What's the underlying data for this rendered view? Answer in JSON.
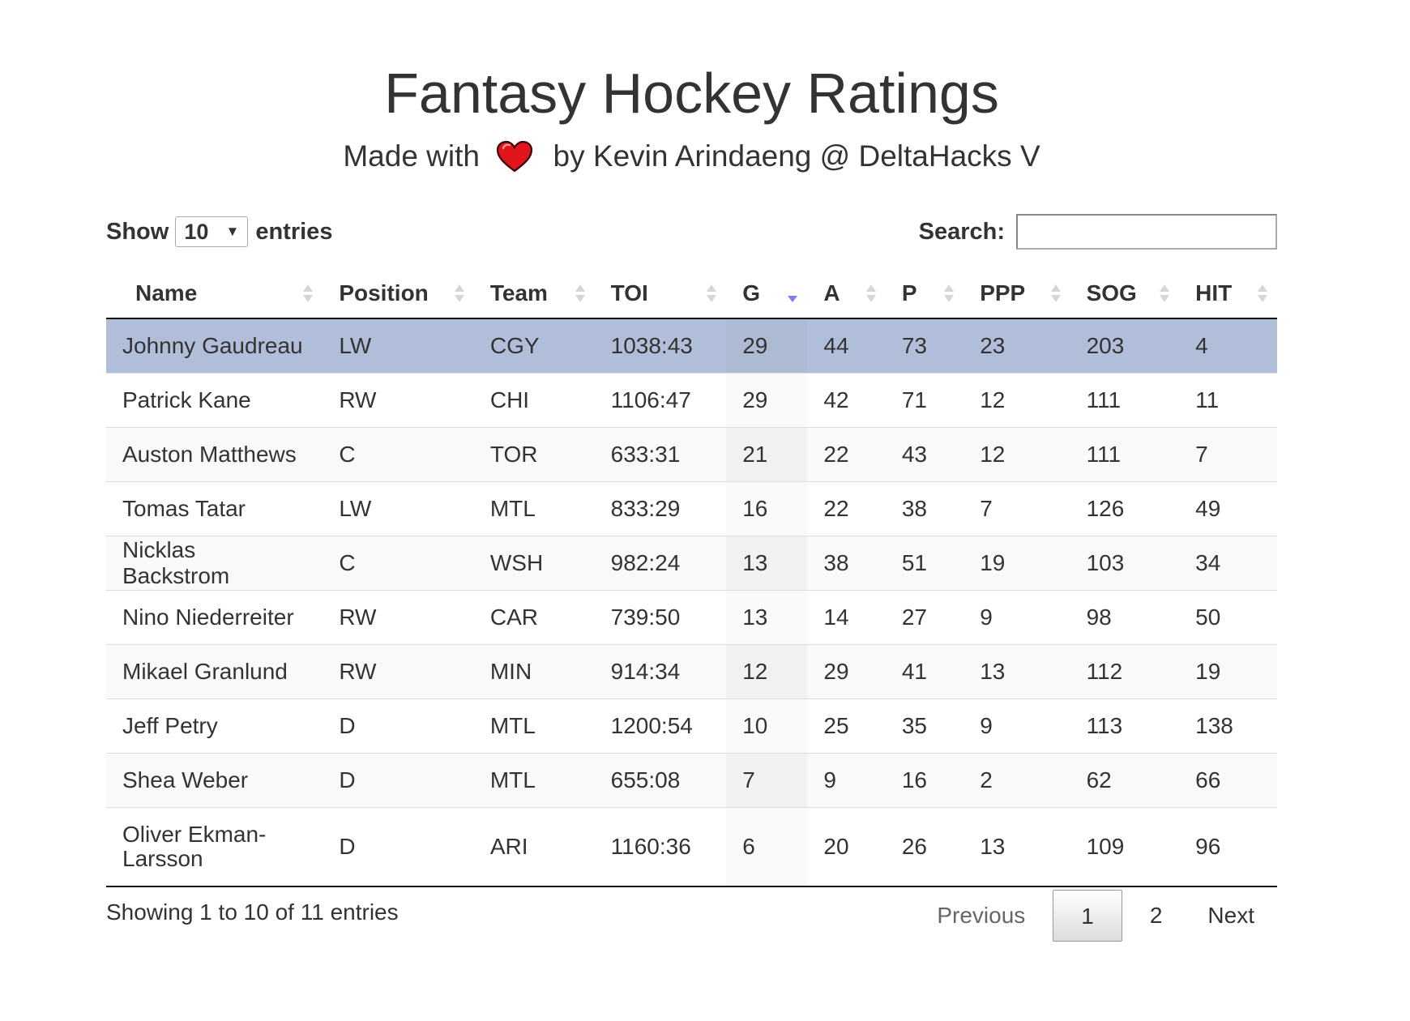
{
  "header": {
    "title": "Fantasy Hockey Ratings",
    "subtitle_prefix": "Made with",
    "subtitle_suffix": "by Kevin Arindaeng @ DeltaHacks V",
    "heart_icon": "heart-icon",
    "heart_color": "#e0151c"
  },
  "length_control": {
    "label_before": "Show",
    "selected": "10",
    "label_after": "entries"
  },
  "search": {
    "label": "Search:",
    "value": "",
    "placeholder": ""
  },
  "table": {
    "columns": [
      "Name",
      "Position",
      "Team",
      "TOI",
      "G",
      "A",
      "P",
      "PPP",
      "SOG",
      "HIT"
    ],
    "sorted_column": "G",
    "sort_direction": "descending",
    "rows": [
      [
        "Johnny Gaudreau",
        "LW",
        "CGY",
        "1038:43",
        "29",
        "44",
        "73",
        "23",
        "203",
        "4"
      ],
      [
        "Patrick Kane",
        "RW",
        "CHI",
        "1106:47",
        "29",
        "42",
        "71",
        "12",
        "111",
        "11"
      ],
      [
        "Auston Matthews",
        "C",
        "TOR",
        "633:31",
        "21",
        "22",
        "43",
        "12",
        "111",
        "7"
      ],
      [
        "Tomas Tatar",
        "LW",
        "MTL",
        "833:29",
        "16",
        "22",
        "38",
        "7",
        "126",
        "49"
      ],
      [
        "Nicklas Backstrom",
        "C",
        "WSH",
        "982:24",
        "13",
        "38",
        "51",
        "19",
        "103",
        "34"
      ],
      [
        "Nino Niederreiter",
        "RW",
        "CAR",
        "739:50",
        "13",
        "14",
        "27",
        "9",
        "98",
        "50"
      ],
      [
        "Mikael Granlund",
        "RW",
        "MIN",
        "914:34",
        "12",
        "29",
        "41",
        "13",
        "112",
        "19"
      ],
      [
        "Jeff Petry",
        "D",
        "MTL",
        "1200:54",
        "10",
        "25",
        "35",
        "9",
        "113",
        "138"
      ],
      [
        "Shea Weber",
        "D",
        "MTL",
        "655:08",
        "7",
        "9",
        "16",
        "2",
        "62",
        "66"
      ],
      [
        "Oliver Ekman-Larsson",
        "D",
        "ARI",
        "1160:36",
        "6",
        "20",
        "26",
        "13",
        "109",
        "96"
      ]
    ],
    "selected_row_color": "#b0bed9",
    "sort_active_color": "#7b7ff0"
  },
  "footer": {
    "info": "Showing 1 to 10 of 11 entries",
    "previous": "Previous",
    "pages": [
      "1",
      "2"
    ],
    "current_page": "1",
    "next": "Next"
  }
}
